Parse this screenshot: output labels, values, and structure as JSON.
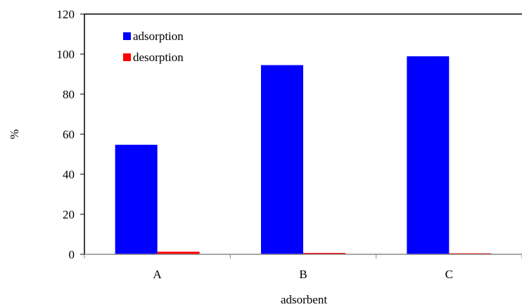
{
  "chart_data": {
    "type": "bar",
    "categories": [
      "A",
      "B",
      "C"
    ],
    "series": [
      {
        "name": "adsorption",
        "values": [
          54.7,
          94.5,
          98.9
        ],
        "color": "#0000ff"
      },
      {
        "name": "desorption",
        "values": [
          1.3,
          0.7,
          0.5
        ],
        "color": "#ff0000"
      }
    ],
    "xlabel": "adsorbent",
    "ylabel": "%",
    "ylim": [
      0,
      120
    ],
    "yticks": [
      0,
      20,
      40,
      60,
      80,
      100,
      120
    ],
    "grid": false,
    "legend_position": "top-left"
  }
}
